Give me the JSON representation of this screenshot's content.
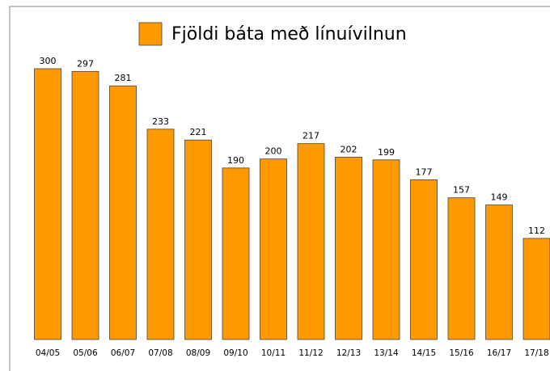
{
  "chart_data": {
    "type": "bar",
    "legend_label": "Fjöldi báta með línuívilnun",
    "categories": [
      "04/05",
      "05/06",
      "06/07",
      "07/08",
      "08/09",
      "09/10",
      "10/11",
      "11/12",
      "12/13",
      "13/14",
      "14/15",
      "15/16",
      "16/17",
      "17/18"
    ],
    "values": [
      300,
      297,
      281,
      233,
      221,
      190,
      200,
      217,
      202,
      199,
      177,
      157,
      149,
      112
    ],
    "color": "#ff9900"
  }
}
